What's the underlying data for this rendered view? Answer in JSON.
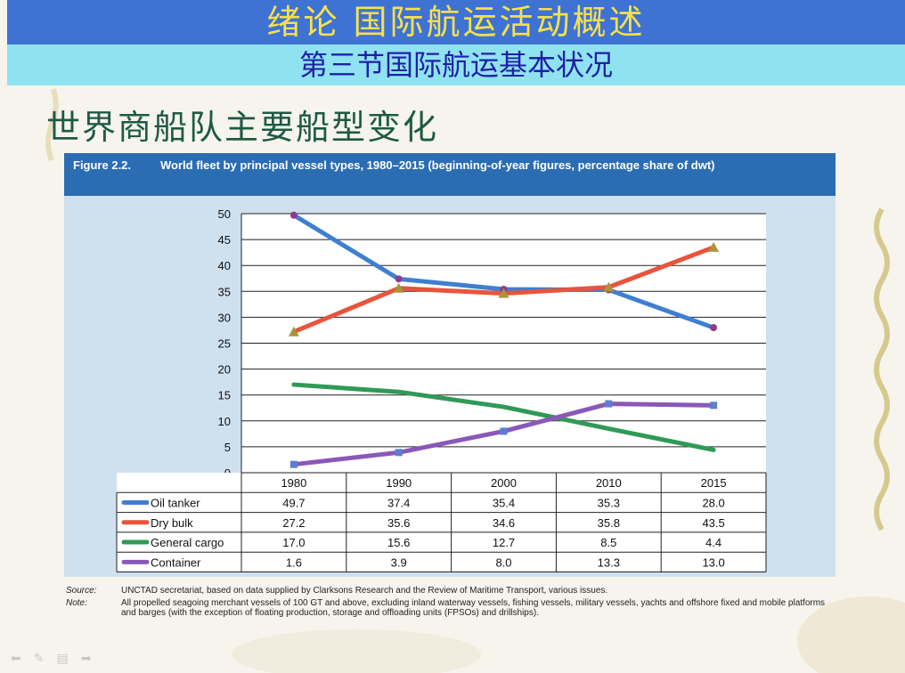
{
  "slide": {
    "title": "绪论   国际航运活动概述",
    "subtitle": "第三节国际航运基本状况",
    "heading": "世界商船队主要船型变化"
  },
  "figure": {
    "label": "Figure 2.2.",
    "title": "World fleet by principal vessel types, 1980–2015 (beginning-of-year figures, percentage share of dwt)",
    "source_label": "Source:",
    "source_text": "UNCTAD secretariat, based on data supplied by Clarksons Research and the Review of Maritime Transport, various issues.",
    "note_label": "Note:",
    "note_text": "All propelled seagoing merchant vessels of 100 GT and above, excluding inland waterway vessels, fishing vessels, military vessels, yachts and offshore fixed and mobile platforms and barges (with the exception of floating production, storage and offloading units (FPSOs) and drillships)."
  },
  "chart_data": {
    "type": "line",
    "title": "World fleet by principal vessel types, 1980–2015 (beginning-of-year figures, percentage share of dwt)",
    "categories": [
      "1980",
      "1990",
      "2000",
      "2010",
      "2015"
    ],
    "ylim": [
      0,
      50
    ],
    "yticks": [
      0,
      5,
      10,
      15,
      20,
      25,
      30,
      35,
      40,
      45,
      50
    ],
    "grid": true,
    "legend": "table-below",
    "series": [
      {
        "name": "Oil tanker",
        "color": "#3f7fd0",
        "marker": "circle",
        "markerColor": "#8b3d8f",
        "values": [
          49.7,
          37.4,
          35.4,
          35.3,
          28.0
        ],
        "labels": [
          "49.7",
          "37.4",
          "35.4",
          "35.3",
          "28.0"
        ]
      },
      {
        "name": "Dry bulk",
        "color": "#e8543c",
        "marker": "triangle",
        "markerColor": "#a9943a",
        "values": [
          27.2,
          35.6,
          34.6,
          35.8,
          43.5
        ],
        "labels": [
          "27.2",
          "35.6",
          "34.6",
          "35.8",
          "43.5"
        ]
      },
      {
        "name": "General cargo",
        "color": "#2f9a56",
        "marker": "none",
        "markerColor": "#2f9a56",
        "values": [
          17.0,
          15.6,
          12.7,
          8.5,
          4.4
        ],
        "labels": [
          "17.0",
          "15.6",
          "12.7",
          "8.5",
          "4.4"
        ]
      },
      {
        "name": "Container",
        "color": "#8a58b8",
        "marker": "square",
        "markerColor": "#5a7fd0",
        "values": [
          1.6,
          3.9,
          8.0,
          13.3,
          13.0
        ],
        "labels": [
          "1.6",
          "3.9",
          "8.0",
          "13.3",
          "13.0"
        ]
      }
    ]
  },
  "toolbar": {
    "icons": [
      "arrow-left-icon",
      "pen-icon",
      "menu-icon",
      "arrow-right-icon"
    ],
    "glyphs": [
      "⬅",
      "✎",
      "▤",
      "➡"
    ]
  }
}
